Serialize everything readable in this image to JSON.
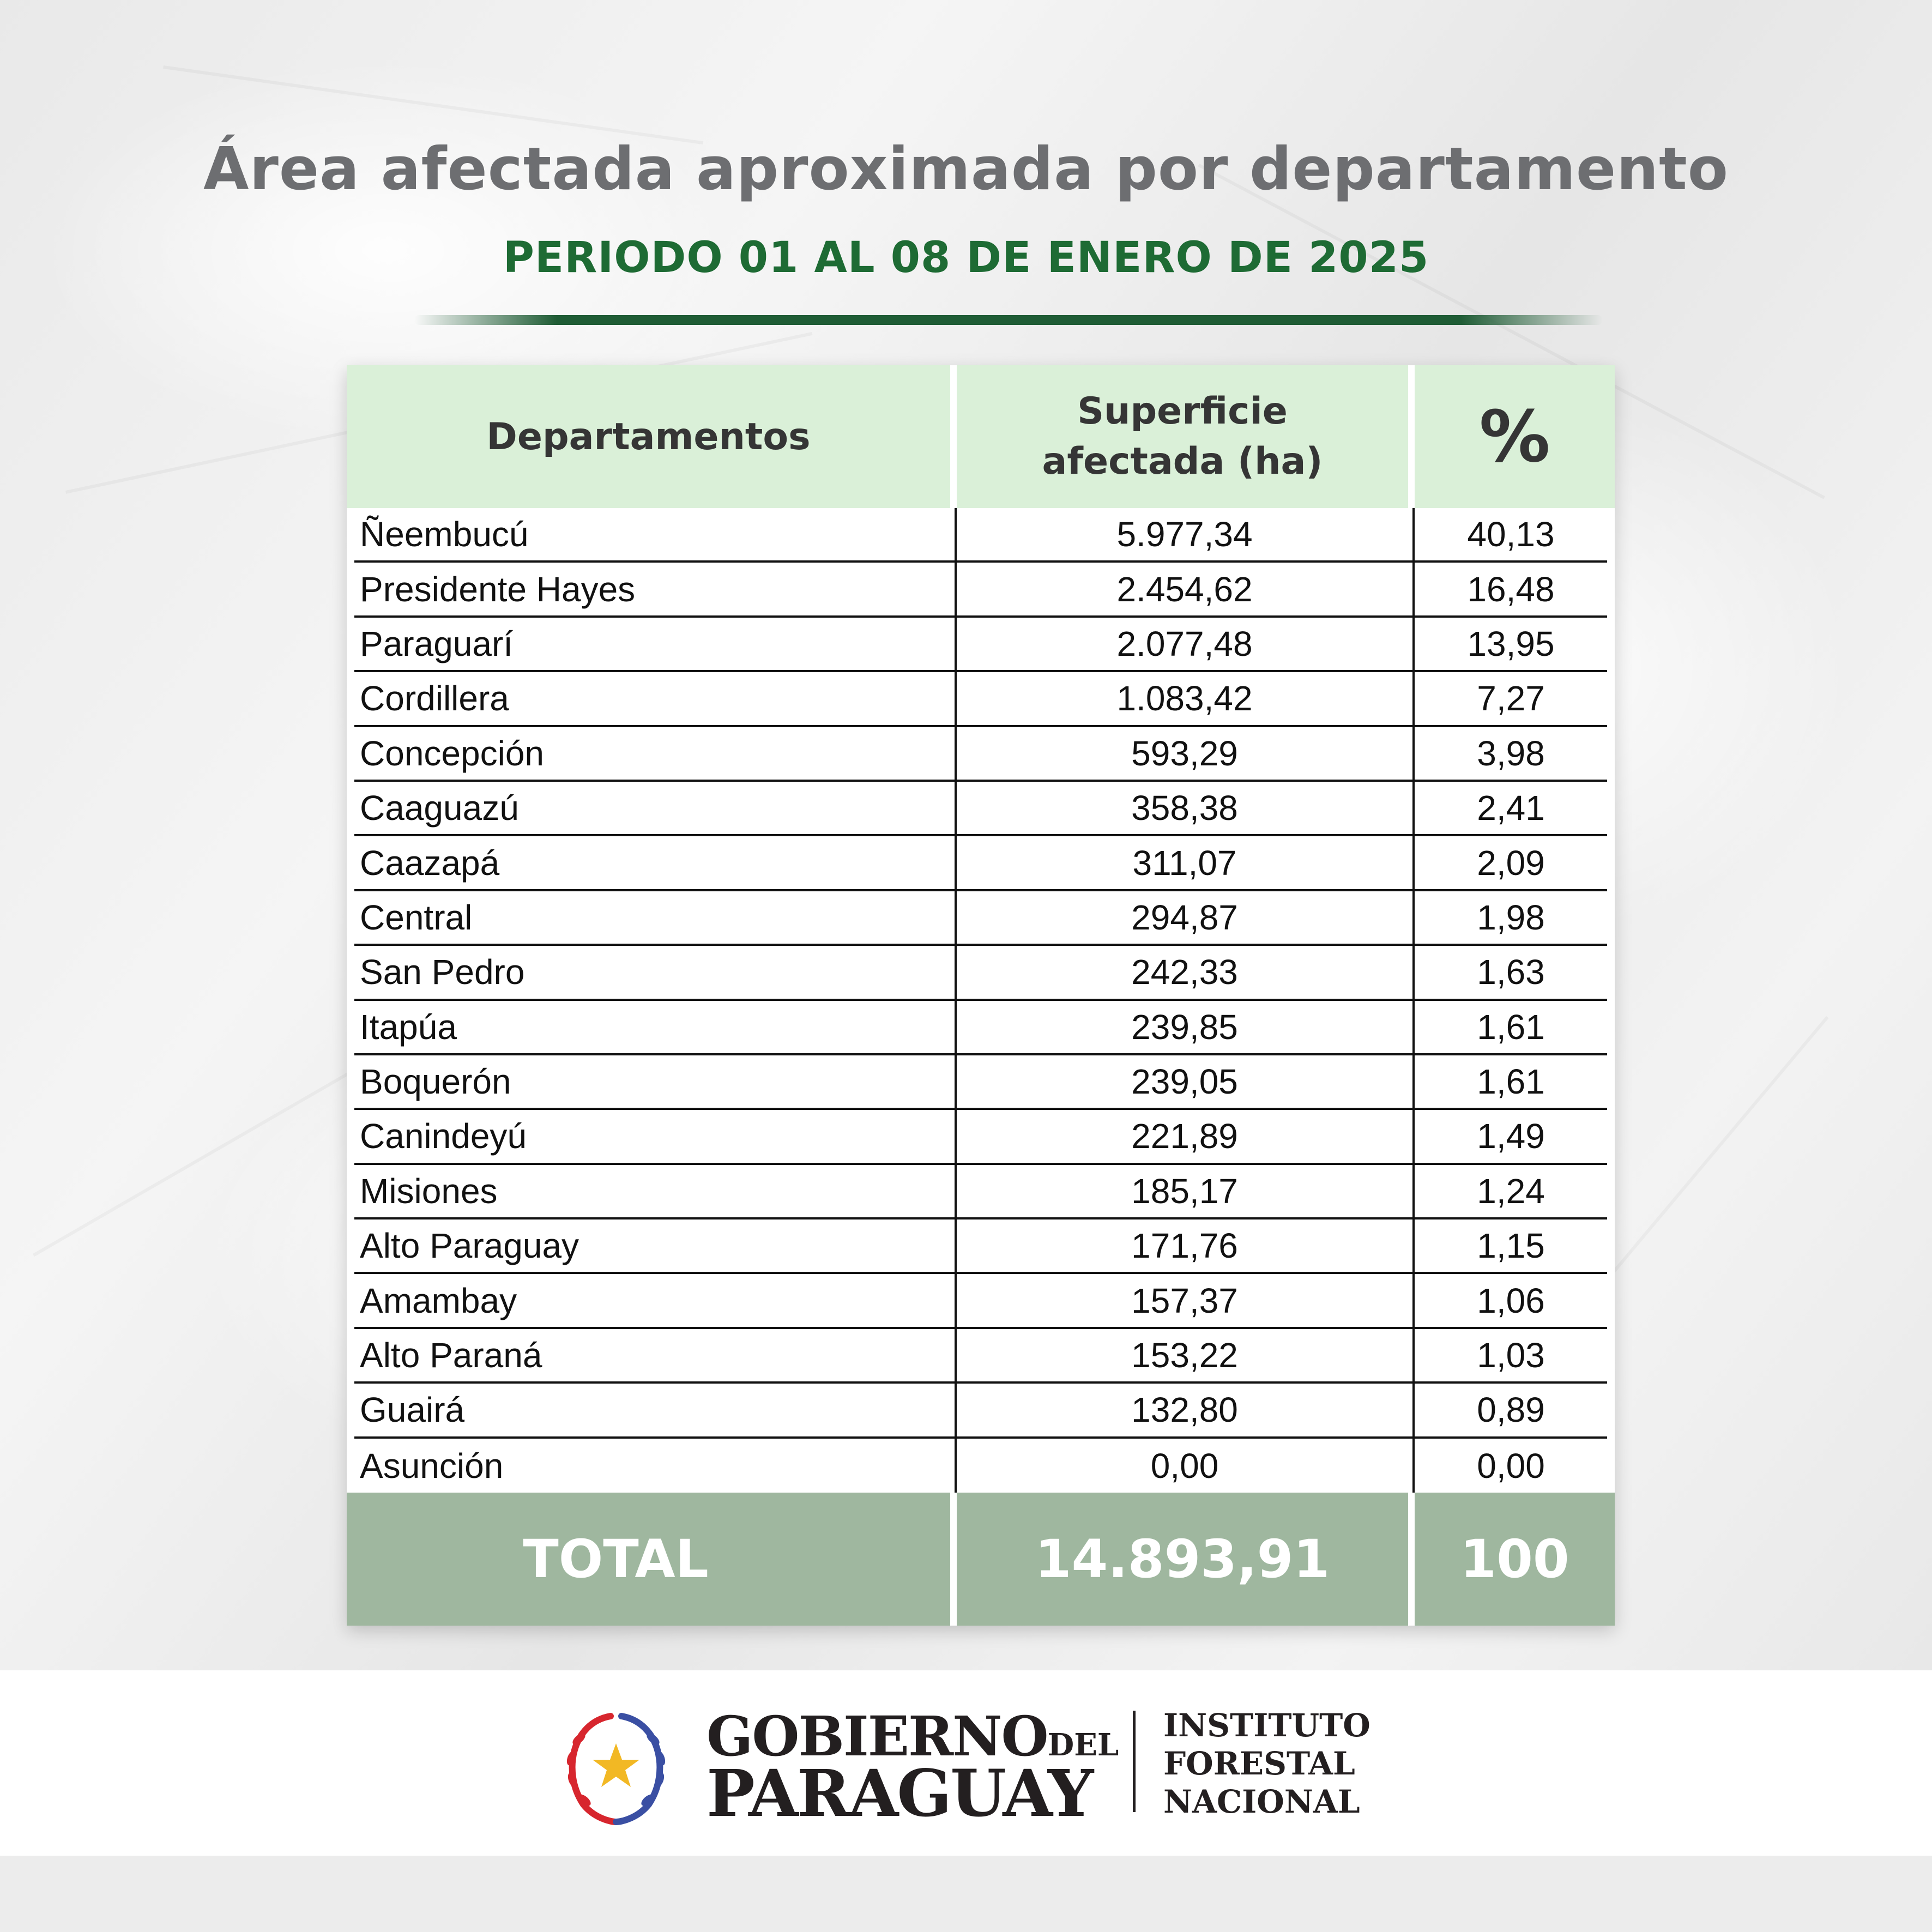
{
  "title": "Área afectada aproximada por departamento",
  "subtitle": "PERIODO 01 AL 08 DE ENERO DE 2025",
  "table": {
    "headers": {
      "department": "Departamentos",
      "surface_line1": "Superficie",
      "surface_line2": "afectada (ha)",
      "percent": "%"
    },
    "rows": [
      {
        "name": "Ñeembucú",
        "surface": "5.977,34",
        "percent": "40,13"
      },
      {
        "name": "Presidente Hayes",
        "surface": "2.454,62",
        "percent": "16,48"
      },
      {
        "name": "Paraguarí",
        "surface": "2.077,48",
        "percent": "13,95"
      },
      {
        "name": "Cordillera",
        "surface": "1.083,42",
        "percent": "7,27"
      },
      {
        "name": "Concepción",
        "surface": "593,29",
        "percent": "3,98"
      },
      {
        "name": "Caaguazú",
        "surface": "358,38",
        "percent": "2,41"
      },
      {
        "name": "Caazapá",
        "surface": "311,07",
        "percent": "2,09"
      },
      {
        "name": "Central",
        "surface": "294,87",
        "percent": "1,98"
      },
      {
        "name": "San Pedro",
        "surface": "242,33",
        "percent": "1,63"
      },
      {
        "name": "Itapúa",
        "surface": "239,85",
        "percent": "1,61"
      },
      {
        "name": "Boquerón",
        "surface": "239,05",
        "percent": "1,61"
      },
      {
        "name": "Canindeyú",
        "surface": "221,89",
        "percent": "1,49"
      },
      {
        "name": "Misiones",
        "surface": "185,17",
        "percent": "1,24"
      },
      {
        "name": "Alto Paraguay",
        "surface": "171,76",
        "percent": "1,15"
      },
      {
        "name": "Amambay",
        "surface": "157,37",
        "percent": "1,06"
      },
      {
        "name": "Alto Paraná",
        "surface": "153,22",
        "percent": "1,03"
      },
      {
        "name": "Guairá",
        "surface": "132,80",
        "percent": "0,89"
      },
      {
        "name": "Asunción",
        "surface": "0,00",
        "percent": "0,00"
      }
    ],
    "total": {
      "label": "TOTAL",
      "surface": "14.893,91",
      "percent": "100"
    }
  },
  "footer": {
    "gobierno": "GOBIERNO",
    "del": "DEL",
    "paraguay": "PARAGUAY",
    "institute_line1": "INSTITUTO",
    "institute_line2": "FORESTAL",
    "institute_line3": "NACIONAL",
    "emblem_icon": "paraguay-star-wreath-emblem-icon"
  },
  "colors": {
    "title": "#6d6e71",
    "subtitle": "#1e6b34",
    "header_bg": "#daf0d8",
    "total_bg": "#9fb79f",
    "rule": "#1f5c35"
  }
}
